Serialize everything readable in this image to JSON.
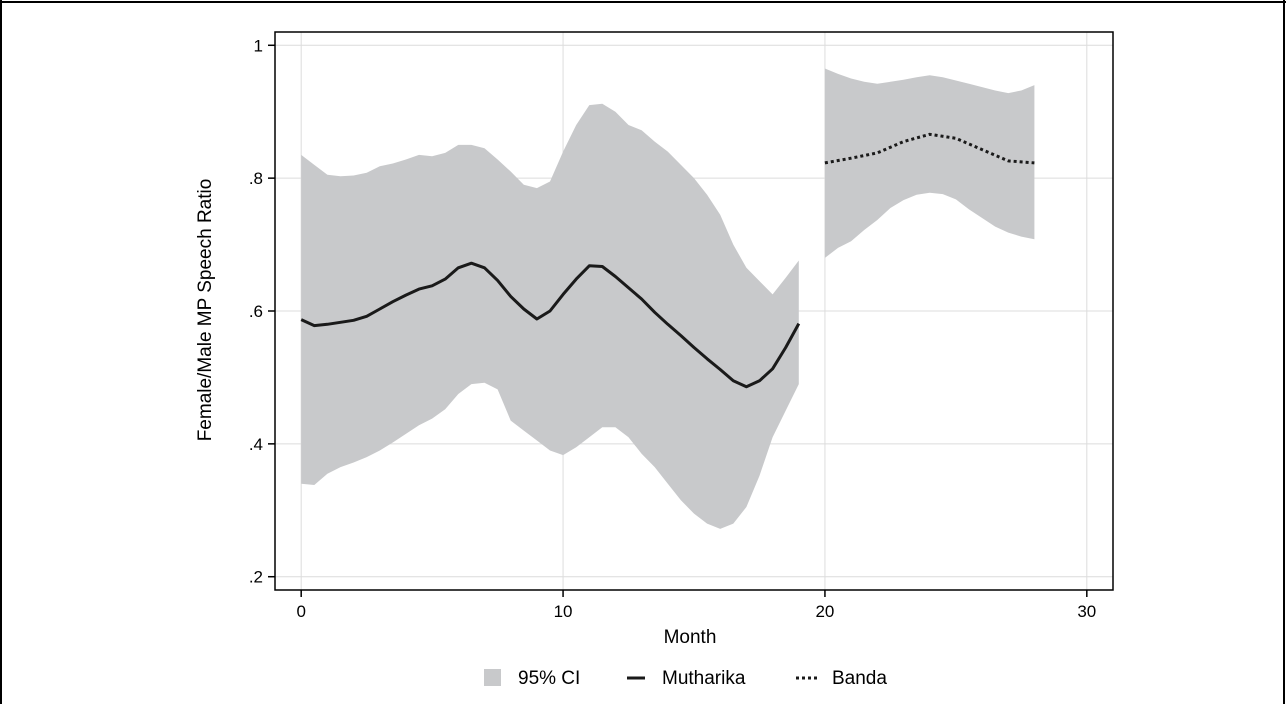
{
  "chart_data": {
    "type": "line",
    "title": "",
    "xlabel": "Month",
    "ylabel": "Female/Male MP Speech Ratio",
    "xlim": [
      -1,
      31
    ],
    "ylim": [
      0.18,
      1.02
    ],
    "xticks": [
      0,
      10,
      20,
      30
    ],
    "xtick_labels": [
      "0",
      "10",
      "20",
      "30"
    ],
    "yticks": [
      0.2,
      0.4,
      0.6,
      0.8,
      1.0
    ],
    "ytick_labels": [
      ".2",
      ".4",
      ".6",
      ".8",
      "1"
    ],
    "grid": true,
    "legend_position": "bottom",
    "legend": [
      "95% CI",
      "Mutharika",
      "Banda"
    ],
    "colors": {
      "ci": "#c8c9cb",
      "line": "#1a1a1a",
      "grid": "#dcdcdc"
    },
    "series": [
      {
        "name": "Mutharika",
        "style": "solid",
        "x": [
          0,
          0.5,
          1,
          1.5,
          2,
          2.5,
          3,
          3.5,
          4,
          4.5,
          5,
          5.5,
          6,
          6.5,
          7,
          7.5,
          8,
          8.5,
          9,
          9.5,
          10,
          10.5,
          11,
          11.5,
          12,
          12.5,
          13,
          13.5,
          14,
          14.5,
          15,
          15.5,
          16,
          16.5,
          17,
          17.5,
          18,
          18.5,
          19
        ],
        "y": [
          0.587,
          0.578,
          0.58,
          0.583,
          0.586,
          0.592,
          0.603,
          0.614,
          0.624,
          0.633,
          0.638,
          0.648,
          0.665,
          0.672,
          0.665,
          0.646,
          0.622,
          0.603,
          0.588,
          0.6,
          0.625,
          0.648,
          0.668,
          0.667,
          0.652,
          0.635,
          0.618,
          0.598,
          0.58,
          0.563,
          0.545,
          0.528,
          0.512,
          0.495,
          0.486,
          0.495,
          0.513,
          0.545,
          0.581
        ]
      },
      {
        "name": "Banda",
        "style": "dotted",
        "x": [
          20,
          21,
          22,
          23,
          24,
          25,
          26,
          27,
          28
        ],
        "y": [
          0.823,
          0.83,
          0.838,
          0.855,
          0.866,
          0.86,
          0.843,
          0.826,
          0.823
        ]
      }
    ],
    "ci_bands": [
      {
        "name": "95% CI",
        "x": [
          0,
          0.5,
          1,
          1.5,
          2,
          2.5,
          3,
          3.5,
          4,
          4.5,
          5,
          5.5,
          6,
          6.5,
          7,
          7.5,
          8,
          8.5,
          9,
          9.5,
          10,
          10.5,
          11,
          11.5,
          12,
          12.5,
          13,
          13.5,
          14,
          14.5,
          15,
          15.5,
          16,
          16.5,
          17,
          17.5,
          18,
          18.5,
          19
        ],
        "upper": [
          0.835,
          0.82,
          0.805,
          0.803,
          0.804,
          0.808,
          0.818,
          0.822,
          0.828,
          0.835,
          0.833,
          0.838,
          0.85,
          0.85,
          0.845,
          0.828,
          0.81,
          0.79,
          0.785,
          0.795,
          0.84,
          0.88,
          0.91,
          0.912,
          0.9,
          0.88,
          0.872,
          0.855,
          0.84,
          0.82,
          0.8,
          0.775,
          0.745,
          0.7,
          0.665,
          0.645,
          0.625,
          0.65,
          0.676
        ]
      },
      {
        "name": "95% CI",
        "x": [
          0,
          0.5,
          1,
          1.5,
          2,
          2.5,
          3,
          3.5,
          4,
          4.5,
          5,
          5.5,
          6,
          6.5,
          7,
          7.5,
          8,
          8.5,
          9,
          9.5,
          10,
          10.5,
          11,
          11.5,
          12,
          12.5,
          13,
          13.5,
          14,
          14.5,
          15,
          15.5,
          16,
          16.5,
          17,
          17.5,
          18,
          18.5,
          19
        ],
        "lower": [
          0.34,
          0.338,
          0.355,
          0.365,
          0.372,
          0.38,
          0.39,
          0.402,
          0.415,
          0.428,
          0.438,
          0.452,
          0.475,
          0.49,
          0.492,
          0.482,
          0.435,
          0.42,
          0.405,
          0.39,
          0.383,
          0.395,
          0.41,
          0.425,
          0.425,
          0.41,
          0.385,
          0.365,
          0.34,
          0.315,
          0.295,
          0.28,
          0.272,
          0.28,
          0.305,
          0.352,
          0.41,
          0.45,
          0.49
        ]
      },
      {
        "name": "95% CI",
        "x": [
          20,
          20.5,
          21,
          21.5,
          22,
          22.5,
          23,
          23.5,
          24,
          24.5,
          25,
          25.5,
          26,
          26.5,
          27,
          27.5,
          28
        ],
        "upper": [
          0.965,
          0.957,
          0.95,
          0.945,
          0.942,
          0.945,
          0.948,
          0.952,
          0.955,
          0.952,
          0.947,
          0.942,
          0.937,
          0.932,
          0.928,
          0.932,
          0.94
        ],
        "lower": [
          0.68,
          0.695,
          0.705,
          0.722,
          0.737,
          0.755,
          0.767,
          0.775,
          0.778,
          0.776,
          0.768,
          0.753,
          0.74,
          0.727,
          0.718,
          0.712,
          0.708
        ]
      }
    ]
  }
}
